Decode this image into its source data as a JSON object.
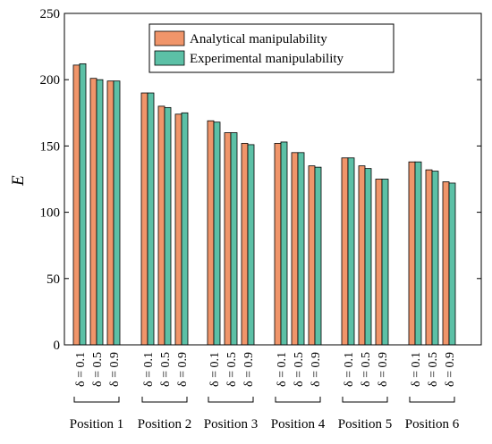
{
  "chart_data": {
    "type": "bar",
    "ylabel": "E",
    "xlabel": "",
    "ylim": [
      0,
      250
    ],
    "yticks": [
      0,
      50,
      100,
      150,
      200,
      250
    ],
    "groups": [
      "Position 1",
      "Position 2",
      "Position 3",
      "Position 4",
      "Position 5",
      "Position 6"
    ],
    "subcategories": [
      "δ = 0.1",
      "δ = 0.5",
      "δ = 0.9"
    ],
    "series": [
      {
        "name": "Analytical manipulability",
        "color": "#f0956a",
        "values": [
          [
            211,
            201,
            199
          ],
          [
            190,
            180,
            174
          ],
          [
            169,
            160,
            152
          ],
          [
            152,
            145,
            135
          ],
          [
            141,
            135,
            125
          ],
          [
            138,
            132,
            123
          ]
        ]
      },
      {
        "name": "Experimental manipulability",
        "color": "#5cc0a6",
        "values": [
          [
            212,
            200,
            199
          ],
          [
            190,
            179,
            175
          ],
          [
            168,
            160,
            151
          ],
          [
            153,
            145,
            134
          ],
          [
            141,
            133,
            125
          ],
          [
            138,
            131,
            122
          ]
        ]
      }
    ],
    "legend": "top-right",
    "grid": false
  }
}
